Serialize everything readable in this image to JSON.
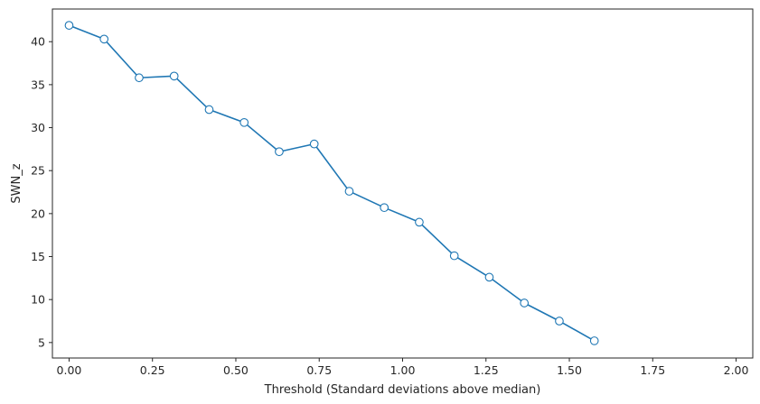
{
  "chart_data": {
    "type": "line",
    "title": "",
    "xlabel": "Threshold (Standard deviations above median)",
    "ylabel": "SWN_z",
    "xlim": [
      -0.05,
      2.05
    ],
    "ylim": [
      3.2,
      43.8
    ],
    "xticks": [
      0.0,
      0.25,
      0.5,
      0.75,
      1.0,
      1.25,
      1.5,
      1.75,
      2.0
    ],
    "xtick_labels": [
      "0.00",
      "0.25",
      "0.50",
      "0.75",
      "1.00",
      "1.25",
      "1.50",
      "1.75",
      "2.00"
    ],
    "yticks": [
      5,
      10,
      15,
      20,
      25,
      30,
      35,
      40
    ],
    "ytick_labels": [
      "5",
      "10",
      "15",
      "20",
      "25",
      "30",
      "35",
      "40"
    ],
    "grid": false,
    "legend": "none",
    "series": [
      {
        "color": "#1f77b4",
        "marker": "circle-open",
        "x": [
          0.0,
          0.105,
          0.21,
          0.315,
          0.42,
          0.525,
          0.63,
          0.735,
          0.84,
          0.945,
          1.05,
          1.155,
          1.26,
          1.365,
          1.47,
          1.575
        ],
        "y": [
          41.9,
          40.3,
          35.8,
          36.0,
          32.1,
          30.6,
          27.2,
          28.1,
          22.6,
          20.7,
          19.0,
          15.1,
          12.6,
          9.6,
          7.5,
          5.2
        ]
      }
    ]
  }
}
